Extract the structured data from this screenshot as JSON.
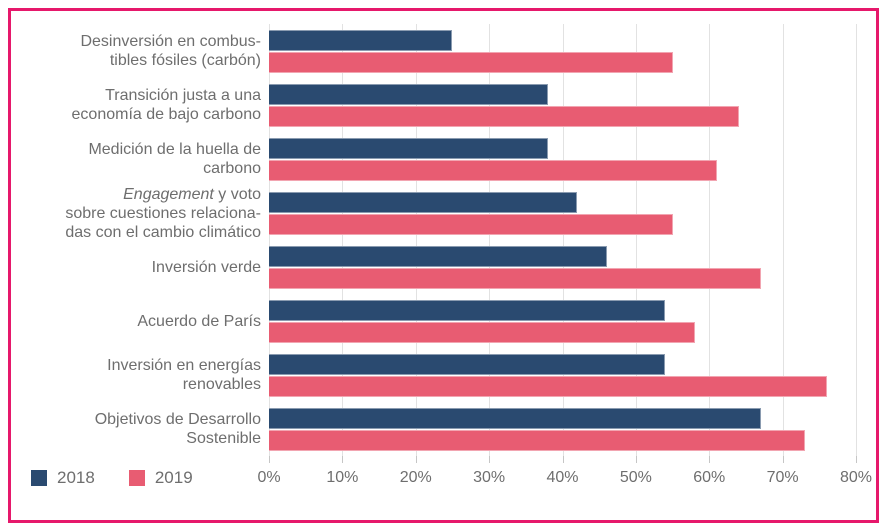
{
  "frame": {
    "border_color": "#e6186b",
    "background": "#ffffff"
  },
  "colors": {
    "gridline": "#e2e2e2",
    "tick": "#c6c6c6",
    "text": "#6e6e6e",
    "series_2018": "#2a4a70",
    "series_2019": "#e85c72"
  },
  "legend": {
    "position": "bottom-left",
    "items": [
      {
        "label": "2018",
        "color": "#2a4a70"
      },
      {
        "label": "2019",
        "color": "#e85c72"
      }
    ]
  },
  "chart_data": {
    "type": "bar",
    "orientation": "horizontal",
    "title": "",
    "xlabel": "",
    "ylabel": "",
    "xlim": [
      0,
      80
    ],
    "x_tick_labels": [
      "0%",
      "10%",
      "20%",
      "30%",
      "40%",
      "50%",
      "60%",
      "70%",
      "80%"
    ],
    "grid": "vertical",
    "legend_position": "bottom-left",
    "categories": [
      "Desinversión en combustibles fósiles (carbón)",
      "Transición justa a una economía de bajo carbono",
      "Medición de la huella de carbono",
      "Engagement y voto sobre cuestiones relacionadas con el cambio climático",
      "Inversión verde",
      "Acuerdo de París",
      "Inversión en energías renovables",
      "Objetivos de Desarrollo Sostenible"
    ],
    "category_label_lines": [
      [
        [
          {
            "text": "Desinversión en combus-"
          }
        ],
        [
          {
            "text": "tibles fósiles (carbón)"
          }
        ]
      ],
      [
        [
          {
            "text": "Transición justa a una"
          }
        ],
        [
          {
            "text": "economía de bajo carbono"
          }
        ]
      ],
      [
        [
          {
            "text": "Medición de la huella de"
          }
        ],
        [
          {
            "text": "carbono"
          }
        ]
      ],
      [
        [
          {
            "text": "Engagement",
            "italic": true
          },
          {
            "text": " y voto"
          }
        ],
        [
          {
            "text": "sobre cuestiones relaciona-"
          }
        ],
        [
          {
            "text": "das con el cambio climático"
          }
        ]
      ],
      [
        [
          {
            "text": "Inversión verde"
          }
        ]
      ],
      [
        [
          {
            "text": "Acuerdo de París"
          }
        ]
      ],
      [
        [
          {
            "text": "Inversión en energías"
          }
        ],
        [
          {
            "text": "renovables"
          }
        ]
      ],
      [
        [
          {
            "text": "Objetivos de Desarrollo"
          }
        ],
        [
          {
            "text": "Sostenible"
          }
        ]
      ]
    ],
    "series": [
      {
        "name": "2018",
        "color": "#2a4a70",
        "values": [
          25,
          38,
          38,
          42,
          46,
          54,
          54,
          67
        ]
      },
      {
        "name": "2019",
        "color": "#e85c72",
        "values": [
          55,
          64,
          61,
          55,
          67,
          58,
          76,
          73
        ]
      }
    ]
  }
}
